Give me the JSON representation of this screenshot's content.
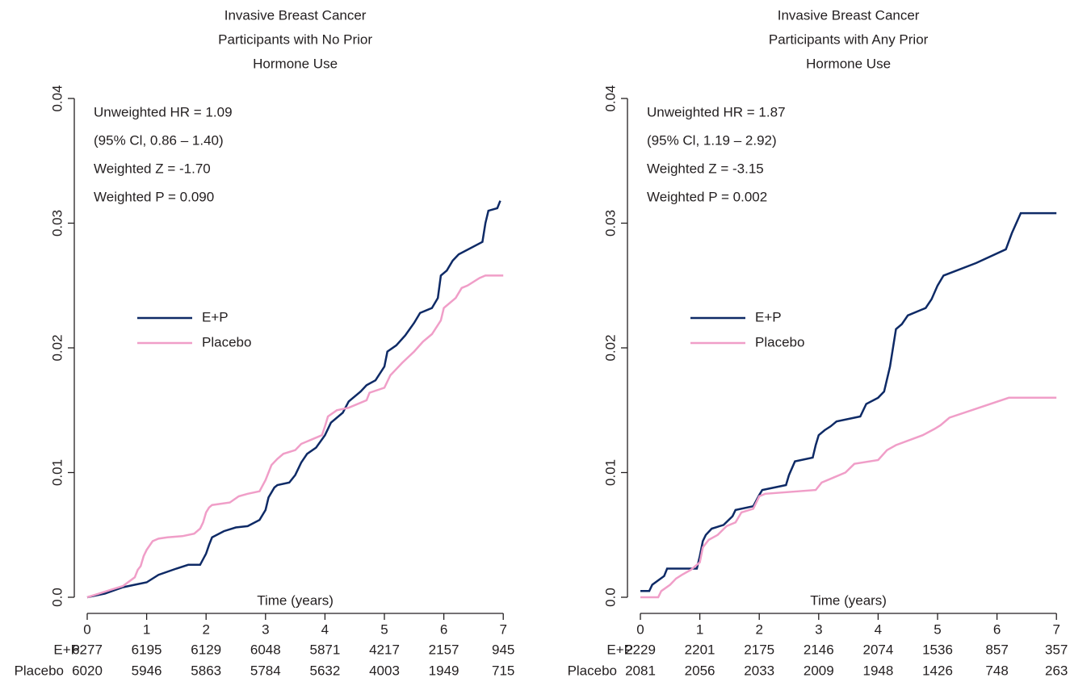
{
  "chart_data": [
    {
      "type": "line",
      "title": [
        "Invasive Breast Cancer",
        "Participants with No Prior",
        "Hormone Use"
      ],
      "annotations": [
        "Unweighted HR = 1.09",
        "(95% Cl, 0.86 – 1.40)",
        "Weighted Z = -1.70",
        "Weighted P = 0.090"
      ],
      "xlabel": "Time (years)",
      "xlim": [
        0,
        7
      ],
      "xticks": [
        0,
        1,
        2,
        3,
        4,
        5,
        6,
        7
      ],
      "ylim": [
        0,
        0.04
      ],
      "yticks": [
        {
          "value": 0,
          "label": "0.0"
        },
        0.01,
        0.02,
        0.03,
        0.04
      ],
      "legend": "center-left",
      "series": [
        {
          "name": "E+P",
          "color": "#0e2a66",
          "x": [
            0,
            0.3,
            0.6,
            0.8,
            1.0,
            1.2,
            1.5,
            1.7,
            1.9,
            2.0,
            2.05,
            2.1,
            2.3,
            2.5,
            2.7,
            2.9,
            3.0,
            3.05,
            3.15,
            3.2,
            3.4,
            3.5,
            3.6,
            3.7,
            3.85,
            4.0,
            4.1,
            4.3,
            4.4,
            4.6,
            4.7,
            4.85,
            5.0,
            5.05,
            5.2,
            5.35,
            5.5,
            5.6,
            5.8,
            5.9,
            5.95,
            6.05,
            6.15,
            6.25,
            6.65,
            6.7,
            6.75,
            6.9,
            6.95
          ],
          "values": [
            0,
            0.0003,
            0.0008,
            0.001,
            0.0012,
            0.0018,
            0.0023,
            0.0026,
            0.0026,
            0.0035,
            0.0042,
            0.0048,
            0.0053,
            0.0056,
            0.0057,
            0.0062,
            0.007,
            0.008,
            0.0088,
            0.009,
            0.0092,
            0.0098,
            0.0108,
            0.0115,
            0.012,
            0.013,
            0.014,
            0.0148,
            0.0157,
            0.0165,
            0.017,
            0.0174,
            0.0185,
            0.0197,
            0.0202,
            0.021,
            0.022,
            0.0228,
            0.0232,
            0.024,
            0.0258,
            0.0262,
            0.027,
            0.0275,
            0.0285,
            0.03,
            0.031,
            0.0312,
            0.0318
          ]
        },
        {
          "name": "Placebo",
          "color": "#f09ec8",
          "x": [
            0,
            0.2,
            0.4,
            0.6,
            0.8,
            0.85,
            0.9,
            0.95,
            1.0,
            1.1,
            1.2,
            1.35,
            1.6,
            1.8,
            1.9,
            1.95,
            2.0,
            2.05,
            2.1,
            2.4,
            2.55,
            2.7,
            2.9,
            3.0,
            3.1,
            3.2,
            3.3,
            3.5,
            3.6,
            3.8,
            3.95,
            4.0,
            4.05,
            4.2,
            4.4,
            4.7,
            4.75,
            5.0,
            5.1,
            5.2,
            5.3,
            5.5,
            5.65,
            5.8,
            5.95,
            6.0,
            6.2,
            6.3,
            6.4,
            6.6,
            6.7,
            7.0
          ],
          "values": [
            0,
            0.0003,
            0.0006,
            0.0009,
            0.0016,
            0.0022,
            0.0025,
            0.0033,
            0.0038,
            0.0045,
            0.0047,
            0.0048,
            0.0049,
            0.0051,
            0.0055,
            0.006,
            0.0068,
            0.0072,
            0.0074,
            0.0076,
            0.0081,
            0.0083,
            0.0085,
            0.0094,
            0.0106,
            0.0111,
            0.0115,
            0.0118,
            0.0123,
            0.0127,
            0.013,
            0.0137,
            0.0145,
            0.015,
            0.0152,
            0.0158,
            0.0164,
            0.0168,
            0.0178,
            0.0183,
            0.0188,
            0.0197,
            0.0205,
            0.0211,
            0.0222,
            0.0232,
            0.024,
            0.0248,
            0.025,
            0.0256,
            0.0258,
            0.0258
          ]
        }
      ],
      "risk_table": [
        {
          "name": "E+P",
          "values": [
            6277,
            6195,
            6129,
            6048,
            5871,
            4217,
            2157,
            945
          ]
        },
        {
          "name": "Placebo",
          "values": [
            6020,
            5946,
            5863,
            5784,
            5632,
            4003,
            1949,
            715
          ]
        }
      ]
    },
    {
      "type": "line",
      "title": [
        "Invasive Breast Cancer",
        "Participants with Any Prior",
        "Hormone Use"
      ],
      "annotations": [
        "Unweighted HR = 1.87",
        "(95% Cl, 1.19 – 2.92)",
        "Weighted Z = -3.15",
        "Weighted P = 0.002"
      ],
      "xlabel": "Time (years)",
      "xlim": [
        0,
        7
      ],
      "xticks": [
        0,
        1,
        2,
        3,
        4,
        5,
        6,
        7
      ],
      "ylim": [
        0,
        0.04
      ],
      "yticks": [
        {
          "value": 0,
          "label": "0.0"
        },
        0.01,
        0.02,
        0.03,
        0.04
      ],
      "legend": "center-left",
      "series": [
        {
          "name": "E+P",
          "color": "#0e2a66",
          "x": [
            0,
            0.15,
            0.2,
            0.4,
            0.45,
            0.95,
            1.0,
            1.05,
            1.1,
            1.2,
            1.4,
            1.55,
            1.6,
            1.9,
            2.0,
            2.05,
            2.45,
            2.5,
            2.6,
            2.9,
            2.95,
            3.0,
            3.1,
            3.2,
            3.3,
            3.7,
            3.8,
            4.0,
            4.1,
            4.2,
            4.3,
            4.4,
            4.5,
            4.8,
            4.9,
            5.0,
            5.1,
            5.65,
            6.15,
            6.25,
            6.4,
            7.0
          ],
          "values": [
            0.0005,
            0.0005,
            0.001,
            0.0017,
            0.0023,
            0.0023,
            0.0033,
            0.0045,
            0.005,
            0.0055,
            0.0058,
            0.0065,
            0.007,
            0.0073,
            0.0082,
            0.0086,
            0.009,
            0.0098,
            0.0109,
            0.0112,
            0.0122,
            0.013,
            0.0134,
            0.0137,
            0.0141,
            0.0145,
            0.0155,
            0.016,
            0.0165,
            0.0185,
            0.0215,
            0.0219,
            0.0226,
            0.0232,
            0.0239,
            0.025,
            0.0258,
            0.0268,
            0.0279,
            0.0292,
            0.0308,
            0.0308
          ]
        },
        {
          "name": "Placebo",
          "color": "#f09ec8",
          "x": [
            0,
            0.3,
            0.35,
            0.5,
            0.6,
            0.7,
            0.85,
            1.0,
            1.05,
            1.15,
            1.3,
            1.45,
            1.6,
            1.7,
            1.9,
            2.0,
            2.1,
            2.95,
            3.05,
            3.25,
            3.45,
            3.6,
            4.0,
            4.15,
            4.3,
            4.75,
            4.95,
            5.05,
            5.2,
            6.2,
            7.0
          ],
          "values": [
            0,
            0,
            0.0005,
            0.001,
            0.0015,
            0.0018,
            0.0022,
            0.0028,
            0.004,
            0.0046,
            0.005,
            0.0057,
            0.006,
            0.0068,
            0.0071,
            0.0081,
            0.0083,
            0.0086,
            0.0092,
            0.0096,
            0.01,
            0.0107,
            0.011,
            0.0118,
            0.0122,
            0.013,
            0.0135,
            0.0138,
            0.0144,
            0.016,
            0.016
          ]
        }
      ],
      "risk_table": [
        {
          "name": "E+P",
          "values": [
            2229,
            2201,
            2175,
            2146,
            2074,
            1536,
            857,
            357
          ]
        },
        {
          "name": "Placebo",
          "values": [
            2081,
            2056,
            2033,
            2009,
            1948,
            1426,
            748,
            263
          ]
        }
      ]
    }
  ]
}
